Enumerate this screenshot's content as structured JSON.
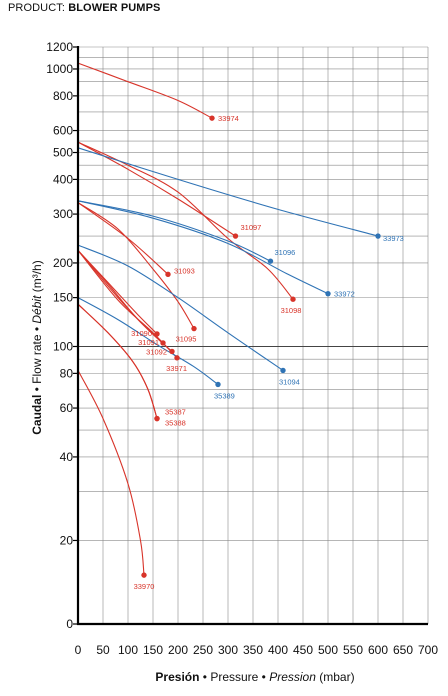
{
  "header": {
    "prefix": "PRODUCT:",
    "name": "BLOWER PUMPS"
  },
  "colors": {
    "red": "#d8342a",
    "blue": "#2f73b5"
  },
  "chart_data": {
    "type": "line",
    "x_axis": {
      "range": [
        0,
        700
      ],
      "ticks": [
        0,
        50,
        100,
        150,
        200,
        250,
        300,
        350,
        400,
        450,
        500,
        550,
        600,
        650,
        700
      ],
      "label_parts": [
        {
          "text": "Presión",
          "style": "bold"
        },
        {
          "text": " • ",
          "style": "normal"
        },
        {
          "text": "Pressure",
          "style": "normal"
        },
        {
          "text": " • ",
          "style": "normal"
        },
        {
          "text": "Pression",
          "style": "italic"
        },
        {
          "text": " (mbar)",
          "style": "normal"
        }
      ]
    },
    "y_axis": {
      "scale": "log",
      "range": [
        10,
        1200
      ],
      "ticks": [
        20,
        40,
        60,
        80,
        100,
        150,
        200,
        300,
        400,
        500,
        600,
        800,
        1000,
        1200
      ],
      "extra_tick_labels": [
        {
          "value": 10,
          "label": "0"
        }
      ],
      "grid": [
        20,
        30,
        40,
        50,
        60,
        70,
        80,
        90,
        100,
        150,
        200,
        250,
        300,
        350,
        400,
        450,
        500,
        550,
        600,
        700,
        800,
        900,
        1000,
        1100,
        1200
      ],
      "label_parts": [
        {
          "text": "Caudal",
          "style": "bold"
        },
        {
          "text": " • ",
          "style": "normal"
        },
        {
          "text": "Flow rate",
          "style": "normal"
        },
        {
          "text": " • ",
          "style": "normal"
        },
        {
          "text": "Débit",
          "style": "italic"
        },
        {
          "text": " (m³/h)",
          "style": "normal"
        }
      ]
    },
    "grid": true,
    "series": [
      {
        "name": "33974",
        "color": "red",
        "points": [
          [
            0,
            1050
          ],
          [
            100,
            900
          ],
          [
            200,
            770
          ],
          [
            268,
            665
          ]
        ]
      },
      {
        "name": "31097",
        "color": "red",
        "points": [
          [
            0,
            545
          ],
          [
            100,
            435
          ],
          [
            200,
            340
          ],
          [
            315,
            250
          ]
        ]
      },
      {
        "name": "31098",
        "color": "red",
        "points": [
          [
            0,
            545
          ],
          [
            100,
            450
          ],
          [
            200,
            360
          ],
          [
            300,
            245
          ],
          [
            380,
            190
          ],
          [
            430,
            148
          ]
        ]
      },
      {
        "name": "31093",
        "color": "red",
        "points": [
          [
            0,
            330
          ],
          [
            100,
            245
          ],
          [
            180,
            182
          ]
        ]
      },
      {
        "name": "31095",
        "color": "red",
        "points": [
          [
            0,
            330
          ],
          [
            80,
            265
          ],
          [
            150,
            190
          ],
          [
            200,
            145
          ],
          [
            232,
            116
          ]
        ]
      },
      {
        "name": "31090",
        "color": "red",
        "points": [
          [
            0,
            222
          ],
          [
            60,
            170
          ],
          [
            120,
            130
          ],
          [
            158,
            111
          ]
        ]
      },
      {
        "name": "31091",
        "color": "red",
        "points": [
          [
            0,
            222
          ],
          [
            60,
            168
          ],
          [
            120,
            125
          ],
          [
            170,
            103
          ]
        ]
      },
      {
        "name": "31092",
        "color": "red",
        "points": [
          [
            0,
            222
          ],
          [
            80,
            150
          ],
          [
            140,
            115
          ],
          [
            188,
            96
          ]
        ]
      },
      {
        "name": "33971",
        "color": "red",
        "points": [
          [
            0,
            222
          ],
          [
            80,
            147
          ],
          [
            150,
            112
          ],
          [
            198,
            91
          ]
        ]
      },
      {
        "name": "35387",
        "color": "red",
        "points": [
          [
            0,
            142
          ],
          [
            60,
            112
          ],
          [
            110,
            88
          ],
          [
            140,
            70
          ],
          [
            158,
            55
          ]
        ]
      },
      {
        "name": "35388",
        "color": "red",
        "points": [
          [
            0,
            142
          ],
          [
            60,
            112
          ],
          [
            110,
            88
          ],
          [
            140,
            70
          ],
          [
            158,
            55
          ]
        ]
      },
      {
        "name": "33970",
        "color": "red",
        "points": [
          [
            0,
            82
          ],
          [
            50,
            55
          ],
          [
            100,
            32
          ],
          [
            125,
            20
          ],
          [
            132,
            15
          ]
        ]
      },
      {
        "name": "33973",
        "color": "blue",
        "points": [
          [
            0,
            520
          ],
          [
            200,
            400
          ],
          [
            400,
            312
          ],
          [
            600,
            250
          ]
        ]
      },
      {
        "name": "31096",
        "color": "blue",
        "points": [
          [
            0,
            335
          ],
          [
            150,
            295
          ],
          [
            300,
            240
          ],
          [
            385,
            203
          ]
        ]
      },
      {
        "name": "33972",
        "color": "blue",
        "points": [
          [
            0,
            335
          ],
          [
            150,
            290
          ],
          [
            300,
            235
          ],
          [
            420,
            182
          ],
          [
            500,
            155
          ]
        ]
      },
      {
        "name": "31094",
        "color": "blue",
        "points": [
          [
            0,
            232
          ],
          [
            100,
            195
          ],
          [
            200,
            150
          ],
          [
            300,
            112
          ],
          [
            410,
            82
          ]
        ]
      },
      {
        "name": "35389",
        "color": "blue",
        "points": [
          [
            0,
            150
          ],
          [
            80,
            125
          ],
          [
            160,
            101
          ],
          [
            230,
            85
          ],
          [
            280,
            73
          ]
        ]
      }
    ],
    "labels": [
      {
        "text": "33974",
        "color": "red",
        "x": 268,
        "y": 665,
        "anchor": "start",
        "dx": 6,
        "dy": 3
      },
      {
        "text": "31097",
        "color": "red",
        "x": 315,
        "y": 250,
        "anchor": "start",
        "dx": 5,
        "dy": -6
      },
      {
        "text": "31096",
        "color": "blue",
        "x": 385,
        "y": 203,
        "anchor": "start",
        "dx": 4,
        "dy": -6
      },
      {
        "text": "33973",
        "color": "blue",
        "x": 600,
        "y": 250,
        "anchor": "start",
        "dx": 5,
        "dy": 5
      },
      {
        "text": "33972",
        "color": "blue",
        "x": 500,
        "y": 155,
        "anchor": "start",
        "dx": 6,
        "dy": 3
      },
      {
        "text": "31098",
        "color": "red",
        "x": 430,
        "y": 148,
        "anchor": "middle",
        "dx": -2,
        "dy": 14
      },
      {
        "text": "31093",
        "color": "red",
        "x": 180,
        "y": 182,
        "anchor": "start",
        "dx": 6,
        "dy": -1
      },
      {
        "text": "31095",
        "color": "red",
        "x": 232,
        "y": 116,
        "anchor": "middle",
        "dx": -8,
        "dy": 13
      },
      {
        "text": "31090",
        "color": "red",
        "x": 158,
        "y": 111,
        "anchor": "end",
        "dx": -5,
        "dy": 2
      },
      {
        "text": "31091",
        "color": "red",
        "x": 170,
        "y": 103,
        "anchor": "end",
        "dx": -4,
        "dy": 2
      },
      {
        "text": "31092",
        "color": "red",
        "x": 188,
        "y": 96,
        "anchor": "end",
        "dx": -5,
        "dy": 3
      },
      {
        "text": "33971",
        "color": "red",
        "x": 198,
        "y": 91,
        "anchor": "end",
        "dx": 10,
        "dy": 13
      },
      {
        "text": "31094",
        "color": "blue",
        "x": 410,
        "y": 82,
        "anchor": "start",
        "dx": -4,
        "dy": 14
      },
      {
        "text": "35389",
        "color": "blue",
        "x": 280,
        "y": 73,
        "anchor": "start",
        "dx": -4,
        "dy": 14
      },
      {
        "text": "35387",
        "color": "red",
        "x": 158,
        "y": 55,
        "anchor": "start",
        "dx": 8,
        "dy": -4
      },
      {
        "text": "35388",
        "color": "red",
        "x": 158,
        "y": 55,
        "anchor": "start",
        "dx": 8,
        "dy": 7
      },
      {
        "text": "33970",
        "color": "red",
        "x": 132,
        "y": 15,
        "anchor": "middle",
        "dx": 0,
        "dy": 14
      }
    ]
  }
}
